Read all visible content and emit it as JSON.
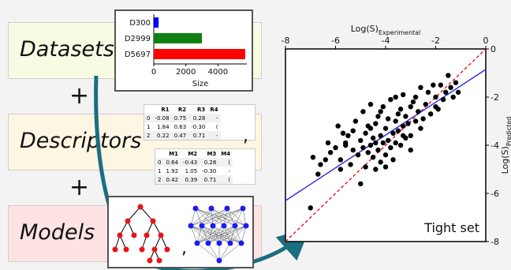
{
  "labels": {
    "datasets": "Datasets",
    "descriptors": "Descriptors",
    "models": "Models",
    "plus": "+",
    "comma": ","
  },
  "colors": {
    "datasets_bg": "#f7fbe3",
    "descriptors_bg": "#fdf6e3",
    "models_bg": "#fde3e3",
    "arrow": "#1a6e80",
    "tree": "#e8141a",
    "nn": "#1c1cf0"
  },
  "size_chart": {
    "type": "bar",
    "categories": [
      "D300",
      "D2999",
      "D5697"
    ],
    "values": [
      300,
      2999,
      5697
    ],
    "colors": [
      "#0000ff",
      "#108010",
      "#ff0000"
    ],
    "xlabel": "Size",
    "xticks": [
      "0",
      "2000",
      "4000"
    ]
  },
  "table1": {
    "headers": [
      "",
      "R1",
      "R2",
      "R3",
      "R4"
    ],
    "rows": [
      [
        "0",
        "-0.08",
        "0.75",
        "0.28",
        "-"
      ],
      [
        "1",
        "1.84",
        "0.63",
        "-0.30",
        "("
      ],
      [
        "2",
        "0.22",
        "0.47",
        "0.71",
        "-"
      ]
    ]
  },
  "table2": {
    "headers": [
      "",
      "M1",
      "M2",
      "M3",
      "M4"
    ],
    "rows": [
      [
        "0",
        "0.64",
        "-0.43",
        "0.28",
        "("
      ],
      [
        "1",
        "1.92",
        "1.05",
        "-0.30",
        "-"
      ],
      [
        "2",
        "0.42",
        "0.39",
        "0.71",
        "("
      ]
    ]
  },
  "chart_data": {
    "type": "scatter",
    "xlabel": "Log(S)",
    "xlabel_sub": "Experimental",
    "ylabel": "Log(S)",
    "ylabel_sub": "Predicted",
    "xlim": [
      -8,
      0
    ],
    "ylim": [
      -8,
      0
    ],
    "xticks": [
      -8,
      -6,
      -4,
      -2,
      0
    ],
    "yticks": [
      0,
      -2,
      -4,
      -6,
      -8
    ],
    "annotation": "Tight set",
    "fit_line": {
      "x": [
        -8,
        0
      ],
      "y": [
        -6.3,
        -0.85
      ]
    },
    "identity_line": {
      "x": [
        -8,
        0
      ],
      "y": [
        -8,
        0
      ]
    },
    "points": [
      [
        -7.0,
        -6.6
      ],
      [
        -6.9,
        -4.5
      ],
      [
        -6.7,
        -5.2
      ],
      [
        -6.6,
        -4.8
      ],
      [
        -6.3,
        -3.9
      ],
      [
        -6.2,
        -4.3
      ],
      [
        -6.0,
        -4.1
      ],
      [
        -5.9,
        -3.2
      ],
      [
        -5.8,
        -4.6
      ],
      [
        -5.7,
        -3.5
      ],
      [
        -5.6,
        -4.0
      ],
      [
        -5.5,
        -3.6
      ],
      [
        -5.4,
        -4.8
      ],
      [
        -5.3,
        -4.2
      ],
      [
        -5.2,
        -3.0
      ],
      [
        -5.1,
        -4.4
      ],
      [
        -5.0,
        -3.8
      ],
      [
        -5.0,
        -5.6
      ],
      [
        -4.9,
        -4.1
      ],
      [
        -4.9,
        -2.6
      ],
      [
        -4.8,
        -3.5
      ],
      [
        -4.8,
        -4.9
      ],
      [
        -4.7,
        -4.3
      ],
      [
        -4.7,
        -3.2
      ],
      [
        -4.6,
        -4.0
      ],
      [
        -4.6,
        -2.3
      ],
      [
        -4.5,
        -4.5
      ],
      [
        -4.5,
        -3.7
      ],
      [
        -4.4,
        -3.1
      ],
      [
        -4.4,
        -5.0
      ],
      [
        -4.3,
        -4.2
      ],
      [
        -4.3,
        -2.8
      ],
      [
        -4.2,
        -3.6
      ],
      [
        -4.2,
        -4.7
      ],
      [
        -4.1,
        -3.9
      ],
      [
        -4.1,
        -2.4
      ],
      [
        -4.0,
        -4.4
      ],
      [
        -4.0,
        -3.3
      ],
      [
        -3.9,
        -3.8
      ],
      [
        -3.9,
        -2.9
      ],
      [
        -3.8,
        -4.1
      ],
      [
        -3.8,
        -2.1
      ],
      [
        -3.7,
        -3.5
      ],
      [
        -3.7,
        -4.6
      ],
      [
        -3.6,
        -3.0
      ],
      [
        -3.6,
        -3.9
      ],
      [
        -3.5,
        -2.7
      ],
      [
        -3.5,
        -3.4
      ],
      [
        -3.4,
        -4.0
      ],
      [
        -3.4,
        -2.5
      ],
      [
        -3.3,
        -3.2
      ],
      [
        -3.3,
        -1.9
      ],
      [
        -3.2,
        -3.7
      ],
      [
        -3.2,
        -2.8
      ],
      [
        -3.1,
        -3.1
      ],
      [
        -3.0,
        -2.4
      ],
      [
        -3.0,
        -3.6
      ],
      [
        -2.9,
        -2.2
      ],
      [
        -2.8,
        -3.0
      ],
      [
        -2.7,
        -2.6
      ],
      [
        -2.6,
        -1.6
      ],
      [
        -2.5,
        -2.9
      ],
      [
        -2.4,
        -2.3
      ],
      [
        -2.3,
        -1.8
      ],
      [
        -2.2,
        -2.7
      ],
      [
        -2.0,
        -2.0
      ],
      [
        -1.9,
        -2.5
      ],
      [
        -1.8,
        -1.5
      ],
      [
        -1.7,
        -2.1
      ],
      [
        -1.6,
        -1.8
      ],
      [
        -1.5,
        -1.1
      ],
      [
        -1.4,
        -1.6
      ],
      [
        -1.3,
        -2.0
      ],
      [
        -1.2,
        -1.4
      ],
      [
        -1.1,
        -1.8
      ],
      [
        -2.1,
        -1.5
      ],
      [
        -3.6,
        -2.0
      ],
      [
        -4.6,
        -3.3
      ],
      [
        -5.3,
        -3.4
      ],
      [
        -2.6,
        -3.3
      ],
      [
        -3.0,
        -4.2
      ],
      [
        -4.0,
        -4.9
      ],
      [
        -5.8,
        -5.0
      ],
      [
        -6.4,
        -4.6
      ],
      [
        -2.0,
        -2.4
      ],
      [
        -2.8,
        -2.0
      ],
      [
        -4.4,
        -3.9
      ],
      [
        -3.3,
        -3.6
      ],
      [
        -5.6,
        -3.9
      ],
      [
        -4.2,
        -2.6
      ]
    ]
  }
}
